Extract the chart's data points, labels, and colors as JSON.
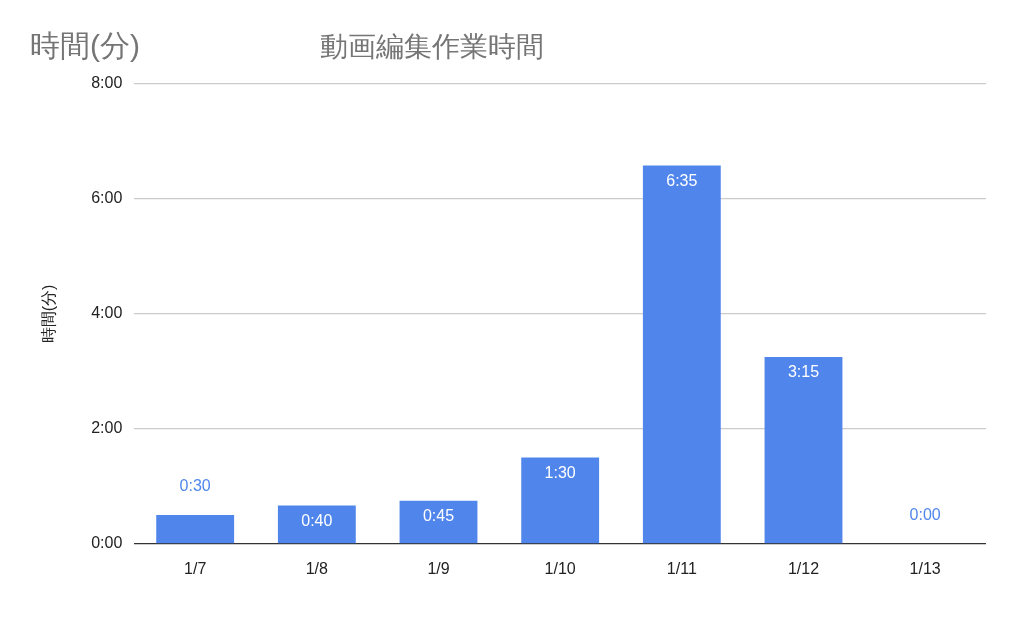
{
  "chart_data": {
    "type": "bar",
    "title": "動画編集作業時間",
    "ylabel": "時間(分)",
    "annotations": [
      "時間(分)"
    ],
    "categories": [
      "1/7",
      "1/8",
      "1/9",
      "1/10",
      "1/11",
      "1/12",
      "1/13"
    ],
    "values": [
      0.5,
      0.6667,
      0.75,
      1.5,
      6.5833,
      3.25,
      0
    ],
    "value_labels": [
      "0:30",
      "0:40",
      "0:45",
      "1:30",
      "6:35",
      "3:15",
      "0:00"
    ],
    "color": "#5086ec",
    "ylim": [
      0,
      8
    ],
    "yticks": [
      {
        "value": 0,
        "label": "0:00"
      },
      {
        "value": 2,
        "label": "2:00"
      },
      {
        "value": 4,
        "label": "4:00"
      },
      {
        "value": 6,
        "label": "6:00"
      },
      {
        "value": 8,
        "label": "8:00"
      }
    ],
    "grid": "y",
    "legend": false
  }
}
